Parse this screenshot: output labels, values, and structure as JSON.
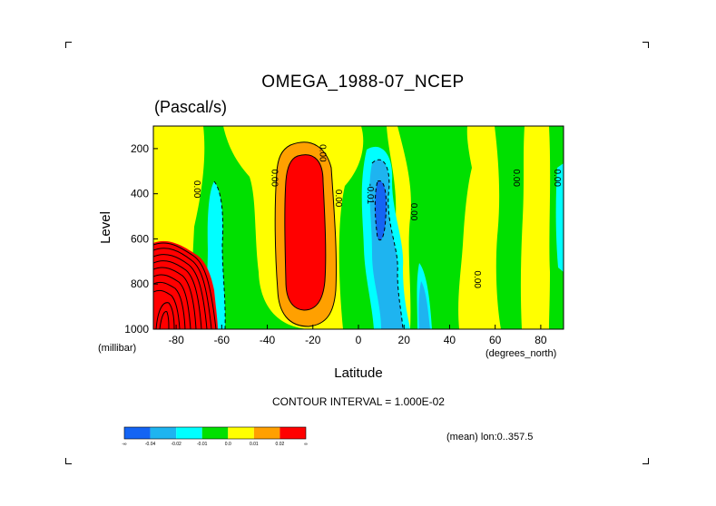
{
  "chart_data": {
    "type": "heatmap",
    "title": "OMEGA_1988-07_NCEP",
    "subtitle": "(Pascal/s)",
    "xlabel": "Latitude",
    "ylabel": "Level",
    "x_unit": "(degrees_north)",
    "y_unit": "(millibar)",
    "xlim": [
      -90,
      90
    ],
    "ylim": [
      1000,
      100
    ],
    "x_ticks": [
      -80,
      -60,
      -40,
      -20,
      0,
      20,
      40,
      60,
      80
    ],
    "y_ticks": [
      200,
      400,
      600,
      800,
      1000
    ],
    "levels_shown": [
      -0.04,
      -0.02,
      -0.01,
      0.0,
      0.01,
      0.02
    ],
    "colorbar": {
      "colors": [
        "#1464f4",
        "#1eb4f0",
        "#00ffff",
        "#00e000",
        "#ffff00",
        "#ffa000",
        "#ff0000"
      ],
      "labels": [
        "-∞",
        "-0.04",
        "-0.02",
        "-0.01",
        "0.0",
        "0.01",
        "0.02",
        "∞"
      ]
    },
    "contour_labels": [
      {
        "text": "0.00",
        "lat": -72,
        "p": 380
      },
      {
        "text": "0.00",
        "lat": -38,
        "p": 330
      },
      {
        "text": "0.00",
        "lat": -17,
        "p": 220
      },
      {
        "text": "0.00",
        "lat": -10,
        "p": 420
      },
      {
        "text": "-0.01",
        "lat": 4,
        "p": 400
      },
      {
        "text": "0.00",
        "lat": 23,
        "p": 480
      },
      {
        "text": "0.00",
        "lat": 51,
        "p": 780
      },
      {
        "text": "0.00",
        "lat": 68,
        "p": 330
      },
      {
        "text": "0.00",
        "lat": 86,
        "p": 330
      }
    ],
    "contour_interval_text": "CONTOUR INTERVAL = 1.000E-02",
    "mean_note": "(mean) lon:0..357.5",
    "grid": false
  }
}
